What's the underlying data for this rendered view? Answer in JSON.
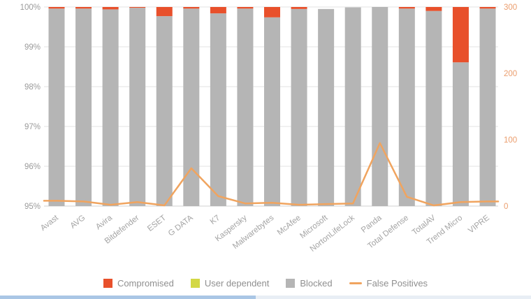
{
  "chart_data": {
    "type": "bar",
    "subtype": "stacked-percentage-bars-with-right-axis-line",
    "title": "",
    "categories": [
      "Avast",
      "AVG",
      "Avira",
      "Bitdefender",
      "ESET",
      "G DATA",
      "K7",
      "Kaspersky",
      "Malwarebytes",
      "McAfee",
      "Microsoft",
      "NortonLifeLock",
      "Panda",
      "Total Defense",
      "TotalAV",
      "Trend Micro",
      "VIPRE"
    ],
    "series": [
      {
        "name": "Compromised",
        "type": "bar",
        "color": "#e8502b",
        "axis": "left",
        "values": [
          0.04,
          0.04,
          0.06,
          0.02,
          0.23,
          0.04,
          0.16,
          0.04,
          0.26,
          0.05,
          0,
          0,
          0,
          0.04,
          0.1,
          1.39,
          0.04
        ]
      },
      {
        "name": "User dependent",
        "type": "bar",
        "color": "#d3d845",
        "axis": "left",
        "values": [
          0,
          0,
          0,
          0,
          0,
          0,
          0,
          0,
          0,
          0,
          0,
          0,
          0,
          0,
          0,
          0,
          0
        ]
      },
      {
        "name": "Blocked",
        "type": "bar",
        "color": "#b5b5b5",
        "axis": "left",
        "values": [
          99.96,
          99.96,
          99.94,
          99.98,
          99.77,
          99.96,
          99.84,
          99.96,
          99.74,
          99.95,
          99.95,
          99.99,
          100,
          99.96,
          99.9,
          98.61,
          99.96
        ]
      },
      {
        "name": "False Positives",
        "type": "line",
        "color": "#f0a45f",
        "axis": "right",
        "values": [
          8,
          7,
          2,
          6,
          1,
          57,
          15,
          4,
          5,
          2,
          3,
          4,
          95,
          14,
          1,
          6,
          7
        ]
      }
    ],
    "left_axis": {
      "unit": "%",
      "min": 95,
      "max": 100,
      "ticks": [
        "100%",
        "99%",
        "98%",
        "97%",
        "96%",
        "95%"
      ],
      "tick_values": [
        100,
        99,
        98,
        97,
        96,
        95
      ],
      "text_color": "#9b9b9b"
    },
    "right_axis": {
      "unit": "count",
      "min": 0,
      "max": 300,
      "ticks": [
        "300",
        "200",
        "100",
        "0"
      ],
      "tick_values": [
        300,
        200,
        100,
        0
      ],
      "text_color": "#eb9e6e"
    },
    "grid": true,
    "gridline_color": "#e3e3e3",
    "baseline_color": "#d2d2d2",
    "x_label_color": "#a3a3a3",
    "legend_position": "bottom"
  },
  "legend": {
    "items": [
      {
        "label": "Compromised",
        "color": "#e8502b",
        "shape": "square"
      },
      {
        "label": "User dependent",
        "color": "#d3d845",
        "shape": "square"
      },
      {
        "label": "Blocked",
        "color": "#b5b5b5",
        "shape": "square"
      },
      {
        "label": "False Positives",
        "color": "#f0a45f",
        "shape": "line"
      }
    ]
  },
  "footer": {
    "accent_color": "#a9c6e5",
    "rest_color": "#e8eef5"
  }
}
